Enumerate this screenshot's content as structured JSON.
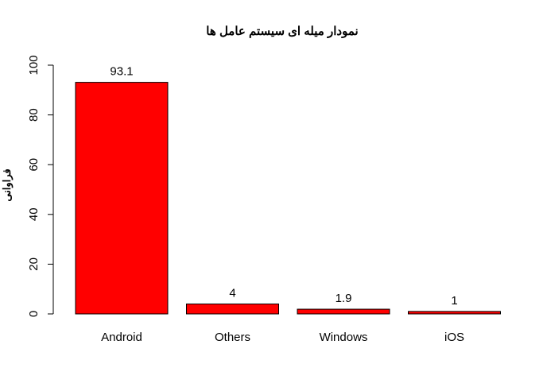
{
  "chart_data": {
    "type": "bar",
    "title": "نمودار میله ای سیستم عامل ها",
    "xlabel": "",
    "ylabel": "فراوانی",
    "categories": [
      "Android",
      "Others",
      "Windows",
      "iOS"
    ],
    "values": [
      93.1,
      4,
      1.9,
      1
    ],
    "data_labels": [
      "93.1",
      "4",
      "1.9",
      "1"
    ],
    "ylim": [
      0,
      100
    ],
    "yticks": [
      0,
      20,
      40,
      60,
      80,
      100
    ],
    "ytick_labels": [
      "0",
      "20",
      "40",
      "60",
      "80",
      "100"
    ],
    "bar_color": "#ff0000",
    "bar_border_color": "#000000",
    "grid": false,
    "legend": "none"
  }
}
